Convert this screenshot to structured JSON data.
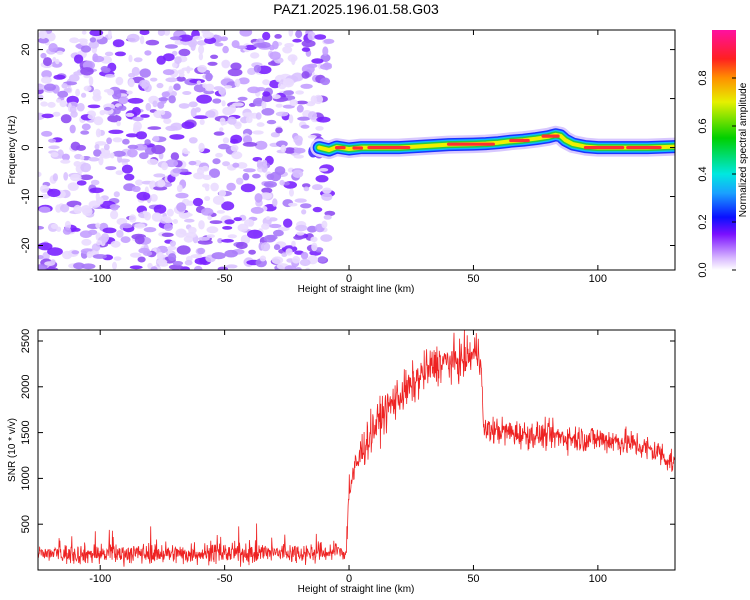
{
  "title": "PAZ1.2025.196.01.58.G03",
  "colors": {
    "snr_line": "#ee2222",
    "noise_blob": "#8a3cf0",
    "ridge_core": "#ff3030",
    "ridge_mid": "#22cc44",
    "ridge_outer": "#1a33ff"
  },
  "chart_data": [
    {
      "type": "heatmap",
      "xlabel": "Height of straight line (km)",
      "ylabel": "Frequency (Hz)",
      "xlim": [
        -125,
        131
      ],
      "ylim": [
        -25,
        24
      ],
      "xticks": [
        -100,
        -50,
        0,
        50,
        100
      ],
      "yticks": [
        -20,
        -10,
        0,
        10,
        20
      ],
      "colorbar": {
        "label": "Normalized spectral amplitude",
        "range": [
          0,
          1
        ],
        "ticks": [
          0.0,
          0.2,
          0.4,
          0.6,
          0.8
        ],
        "tick_labels": [
          "0.0",
          "0.2",
          "0.4",
          "0.6",
          "0.8"
        ],
        "colormap": "rainbow (white-violet-blue-cyan-green-yellow-red-magenta)"
      },
      "noise_region_x": [
        -125,
        -10
      ],
      "ridge": {
        "x": [
          -12,
          -8,
          -5,
          0,
          5,
          10,
          20,
          30,
          40,
          50,
          55,
          60,
          65,
          70,
          75,
          80,
          83,
          85,
          87,
          90,
          95,
          100,
          110,
          120,
          131
        ],
        "frequency": [
          0.0,
          -0.5,
          0.1,
          -0.3,
          0.0,
          0.0,
          0.0,
          0.3,
          0.6,
          0.7,
          0.8,
          1.0,
          1.3,
          1.5,
          1.8,
          2.2,
          2.6,
          2.4,
          1.5,
          0.7,
          0.2,
          0.0,
          0.0,
          0.0,
          0.2
        ]
      }
    },
    {
      "type": "line",
      "xlabel": "Height of straight line (km)",
      "ylabel": "SNR (10 * v/v)",
      "xlim": [
        -125,
        131
      ],
      "ylim": [
        0,
        2620
      ],
      "xticks": [
        -100,
        -50,
        0,
        50,
        100
      ],
      "yticks": [
        500,
        1000,
        1500,
        2000,
        2500
      ],
      "series": [
        {
          "x": [
            -125,
            -110,
            -100,
            -90,
            -80,
            -70,
            -60,
            -50,
            -40,
            -30,
            -20,
            -15,
            -12,
            -5,
            -3,
            -1,
            0,
            2,
            5,
            10,
            15,
            20,
            25,
            30,
            35,
            40,
            45,
            48,
            50,
            52,
            53,
            54,
            60,
            70,
            80,
            90,
            100,
            110,
            115,
            120,
            125,
            131
          ],
          "values": [
            180,
            175,
            175,
            180,
            185,
            175,
            180,
            185,
            180,
            185,
            190,
            185,
            190,
            195,
            200,
            205,
            900,
            1050,
            1300,
            1550,
            1750,
            1900,
            2000,
            2150,
            2250,
            2270,
            2280,
            2330,
            2350,
            2400,
            2350,
            1530,
            1520,
            1480,
            1470,
            1440,
            1430,
            1400,
            1370,
            1320,
            1280,
            1150
          ]
        }
      ]
    }
  ]
}
